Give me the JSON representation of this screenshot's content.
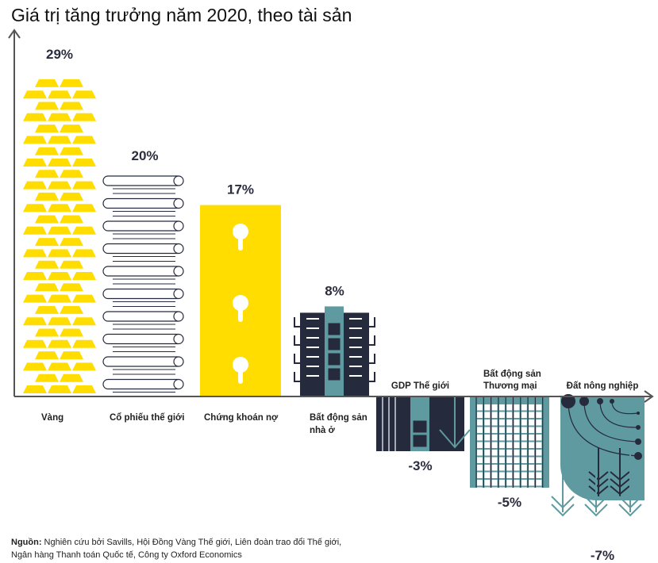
{
  "chart_data": {
    "type": "bar",
    "title": "Giá trị tăng trưởng năm 2020, theo tài sản",
    "categories": [
      "Vàng",
      "Cổ phiếu thế giới",
      "Chứng khoán nợ",
      "Bất động sản nhà ở",
      "GDP Thế giới",
      "Bất động sản Thương mại",
      "Đất nông nghiệp"
    ],
    "category_lines": [
      [
        "Vàng"
      ],
      [
        "Cổ phiếu thế giới"
      ],
      [
        "Chứng khoán nợ"
      ],
      [
        "Bất động sản",
        "nhà ở"
      ],
      [
        "GDP Thế giới"
      ],
      [
        "Bất động sản",
        "Thương mại"
      ],
      [
        "Đất nông nghiệp"
      ]
    ],
    "values": [
      29,
      20,
      17,
      8,
      -3,
      -5,
      -7
    ],
    "data_labels": [
      "29%",
      "20%",
      "17%",
      "8%",
      "-3%",
      "-5%",
      "-7%"
    ],
    "xlabel": "",
    "ylabel": "",
    "grid": false,
    "colors": {
      "gold": "#ffdd00",
      "navy": "#252a3c",
      "teal": "#5e9aa0",
      "axis": "#555555"
    }
  },
  "source": {
    "label": "Nguồn:",
    "line1": " Nghiên cứu bởi Savills, Hội Đồng Vàng Thế giới, Liên đoàn trao đổi Thế giới,",
    "line2": "Ngân hàng Thanh toán Quốc tế, Công ty Oxford Economics"
  }
}
